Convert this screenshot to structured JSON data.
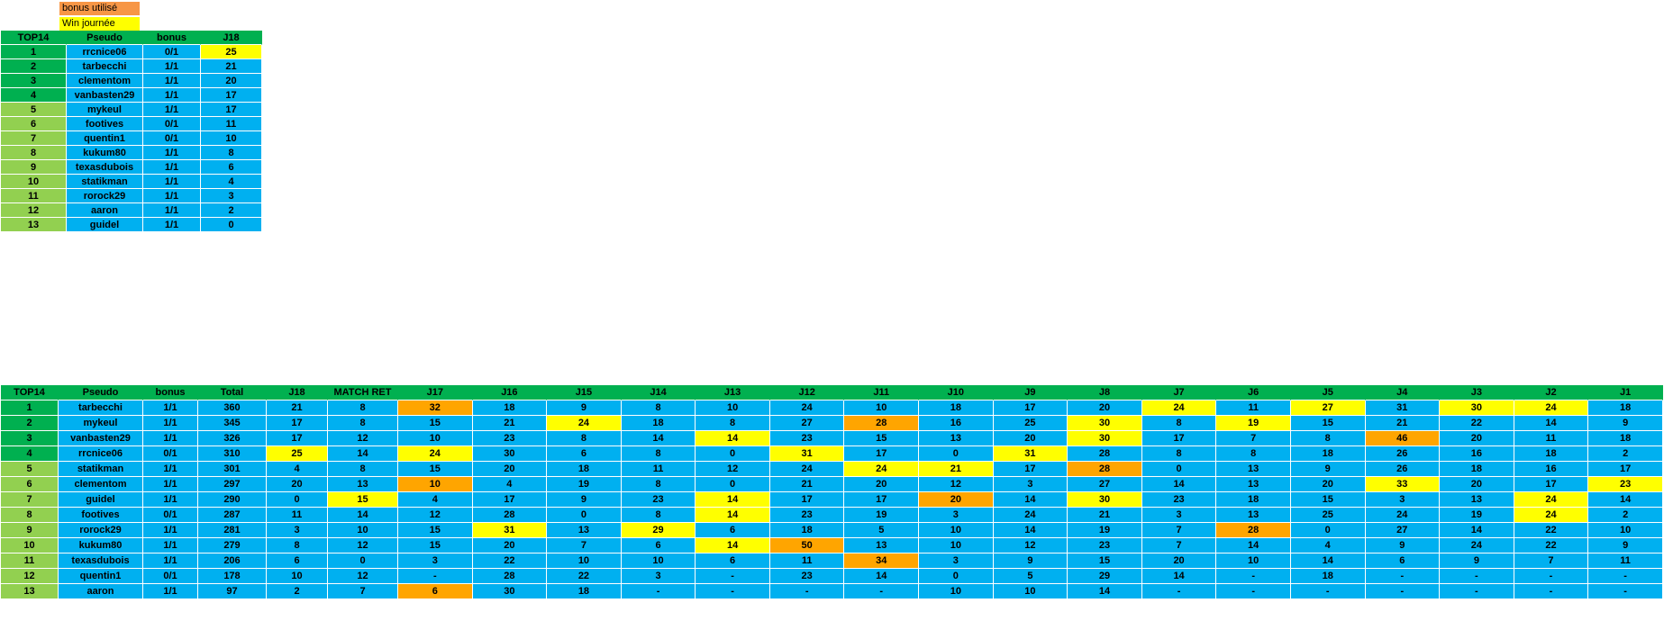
{
  "colors": {
    "header_green": "#00B050",
    "rank_light_green": "#92D050",
    "cell_blue": "#00B0F0",
    "win_yellow": "#FFFF00",
    "bonus_orange": "#FFA500",
    "legend_orange": "#F79646"
  },
  "legend": {
    "items": [
      {
        "label": "bonus utilisé",
        "color": "#F79646"
      },
      {
        "label": "Win journée",
        "color": "#FFFF00"
      }
    ]
  },
  "top_table": {
    "columns": [
      "TOP14",
      "Pseudo",
      "bonus",
      "J18"
    ],
    "rows": [
      {
        "rank": "1",
        "pseudo": "rrcnice06",
        "bonus": "0/1",
        "score": {
          "v": "25",
          "hl": "win"
        }
      },
      {
        "rank": "2",
        "pseudo": "tarbecchi",
        "bonus": "1/1",
        "score": {
          "v": "21"
        }
      },
      {
        "rank": "3",
        "pseudo": "clementom",
        "bonus": "1/1",
        "score": {
          "v": "20"
        }
      },
      {
        "rank": "4",
        "pseudo": "vanbasten29",
        "bonus": "1/1",
        "score": {
          "v": "17"
        }
      },
      {
        "rank": "5",
        "pseudo": "mykeul",
        "bonus": "1/1",
        "score": {
          "v": "17"
        }
      },
      {
        "rank": "6",
        "pseudo": "footives",
        "bonus": "0/1",
        "score": {
          "v": "11"
        }
      },
      {
        "rank": "7",
        "pseudo": "quentin1",
        "bonus": "0/1",
        "score": {
          "v": "10"
        }
      },
      {
        "rank": "8",
        "pseudo": "kukum80",
        "bonus": "1/1",
        "score": {
          "v": "8"
        }
      },
      {
        "rank": "9",
        "pseudo": "texasdubois",
        "bonus": "1/1",
        "score": {
          "v": "6"
        }
      },
      {
        "rank": "10",
        "pseudo": "statikman",
        "bonus": "1/1",
        "score": {
          "v": "4"
        }
      },
      {
        "rank": "11",
        "pseudo": "rorock29",
        "bonus": "1/1",
        "score": {
          "v": "3"
        }
      },
      {
        "rank": "12",
        "pseudo": "aaron",
        "bonus": "1/1",
        "score": {
          "v": "2"
        }
      },
      {
        "rank": "13",
        "pseudo": "guidel",
        "bonus": "1/1",
        "score": {
          "v": "0"
        }
      }
    ]
  },
  "bottom_table": {
    "columns": [
      "TOP14",
      "Pseudo",
      "bonus",
      "Total",
      "J18",
      "MATCH RET",
      "J17",
      "J16",
      "J15",
      "J14",
      "J13",
      "J12",
      "J11",
      "J10",
      "J9",
      "J8",
      "J7",
      "J6",
      "J5",
      "J4",
      "J3",
      "J2",
      "J1"
    ],
    "rows": [
      {
        "rank": "1",
        "pseudo": "tarbecchi",
        "bonus": "1/1",
        "total": "360",
        "scores": [
          {
            "v": "21"
          },
          {
            "v": "8"
          },
          {
            "v": "32",
            "hl": "bonus"
          },
          {
            "v": "18"
          },
          {
            "v": "9"
          },
          {
            "v": "8"
          },
          {
            "v": "10"
          },
          {
            "v": "24"
          },
          {
            "v": "10"
          },
          {
            "v": "18"
          },
          {
            "v": "17"
          },
          {
            "v": "20"
          },
          {
            "v": "24",
            "hl": "win"
          },
          {
            "v": "11"
          },
          {
            "v": "27",
            "hl": "win"
          },
          {
            "v": "31"
          },
          {
            "v": "30",
            "hl": "win"
          },
          {
            "v": "24",
            "hl": "win"
          },
          {
            "v": "18"
          }
        ]
      },
      {
        "rank": "2",
        "pseudo": "mykeul",
        "bonus": "1/1",
        "total": "345",
        "scores": [
          {
            "v": "17"
          },
          {
            "v": "8"
          },
          {
            "v": "15"
          },
          {
            "v": "21"
          },
          {
            "v": "24",
            "hl": "win"
          },
          {
            "v": "18"
          },
          {
            "v": "8"
          },
          {
            "v": "27"
          },
          {
            "v": "28",
            "hl": "bonus"
          },
          {
            "v": "16"
          },
          {
            "v": "25"
          },
          {
            "v": "30",
            "hl": "win"
          },
          {
            "v": "8"
          },
          {
            "v": "19",
            "hl": "win"
          },
          {
            "v": "15"
          },
          {
            "v": "21"
          },
          {
            "v": "22"
          },
          {
            "v": "14"
          },
          {
            "v": "9"
          }
        ]
      },
      {
        "rank": "3",
        "pseudo": "vanbasten29",
        "bonus": "1/1",
        "total": "326",
        "scores": [
          {
            "v": "17"
          },
          {
            "v": "12"
          },
          {
            "v": "10"
          },
          {
            "v": "23"
          },
          {
            "v": "8"
          },
          {
            "v": "14"
          },
          {
            "v": "14",
            "hl": "win"
          },
          {
            "v": "23"
          },
          {
            "v": "15"
          },
          {
            "v": "13"
          },
          {
            "v": "20"
          },
          {
            "v": "30",
            "hl": "win"
          },
          {
            "v": "17"
          },
          {
            "v": "7"
          },
          {
            "v": "8"
          },
          {
            "v": "46",
            "hl": "bonus"
          },
          {
            "v": "20"
          },
          {
            "v": "11"
          },
          {
            "v": "18"
          }
        ]
      },
      {
        "rank": "4",
        "pseudo": "rrcnice06",
        "bonus": "0/1",
        "total": "310",
        "scores": [
          {
            "v": "25",
            "hl": "win"
          },
          {
            "v": "14"
          },
          {
            "v": "24",
            "hl": "win"
          },
          {
            "v": "30"
          },
          {
            "v": "6"
          },
          {
            "v": "8"
          },
          {
            "v": "0"
          },
          {
            "v": "31",
            "hl": "win"
          },
          {
            "v": "17"
          },
          {
            "v": "0"
          },
          {
            "v": "31",
            "hl": "win"
          },
          {
            "v": "28"
          },
          {
            "v": "8"
          },
          {
            "v": "8"
          },
          {
            "v": "18"
          },
          {
            "v": "26"
          },
          {
            "v": "16"
          },
          {
            "v": "18"
          },
          {
            "v": "2"
          }
        ]
      },
      {
        "rank": "5",
        "pseudo": "statikman",
        "bonus": "1/1",
        "total": "301",
        "scores": [
          {
            "v": "4"
          },
          {
            "v": "8"
          },
          {
            "v": "15"
          },
          {
            "v": "20"
          },
          {
            "v": "18"
          },
          {
            "v": "11"
          },
          {
            "v": "12"
          },
          {
            "v": "24"
          },
          {
            "v": "24",
            "hl": "win"
          },
          {
            "v": "21",
            "hl": "win"
          },
          {
            "v": "17"
          },
          {
            "v": "28",
            "hl": "bonus"
          },
          {
            "v": "0"
          },
          {
            "v": "13"
          },
          {
            "v": "9"
          },
          {
            "v": "26"
          },
          {
            "v": "18"
          },
          {
            "v": "16"
          },
          {
            "v": "17"
          }
        ]
      },
      {
        "rank": "6",
        "pseudo": "clementom",
        "bonus": "1/1",
        "total": "297",
        "scores": [
          {
            "v": "20"
          },
          {
            "v": "13"
          },
          {
            "v": "10",
            "hl": "bonus"
          },
          {
            "v": "4"
          },
          {
            "v": "19"
          },
          {
            "v": "8"
          },
          {
            "v": "0"
          },
          {
            "v": "21"
          },
          {
            "v": "20"
          },
          {
            "v": "12"
          },
          {
            "v": "3"
          },
          {
            "v": "27"
          },
          {
            "v": "14"
          },
          {
            "v": "13"
          },
          {
            "v": "20"
          },
          {
            "v": "33",
            "hl": "win"
          },
          {
            "v": "20"
          },
          {
            "v": "17"
          },
          {
            "v": "23",
            "hl": "win"
          }
        ]
      },
      {
        "rank": "7",
        "pseudo": "guidel",
        "bonus": "1/1",
        "total": "290",
        "scores": [
          {
            "v": "0"
          },
          {
            "v": "15",
            "hl": "win"
          },
          {
            "v": "4"
          },
          {
            "v": "17"
          },
          {
            "v": "9"
          },
          {
            "v": "23"
          },
          {
            "v": "14",
            "hl": "win"
          },
          {
            "v": "17"
          },
          {
            "v": "17"
          },
          {
            "v": "20",
            "hl": "bonus"
          },
          {
            "v": "14"
          },
          {
            "v": "30",
            "hl": "win"
          },
          {
            "v": "23"
          },
          {
            "v": "18"
          },
          {
            "v": "15"
          },
          {
            "v": "3"
          },
          {
            "v": "13"
          },
          {
            "v": "24",
            "hl": "win"
          },
          {
            "v": "14"
          }
        ]
      },
      {
        "rank": "8",
        "pseudo": "footives",
        "bonus": "0/1",
        "total": "287",
        "scores": [
          {
            "v": "11"
          },
          {
            "v": "14"
          },
          {
            "v": "12"
          },
          {
            "v": "28"
          },
          {
            "v": "0"
          },
          {
            "v": "8"
          },
          {
            "v": "14",
            "hl": "win"
          },
          {
            "v": "23"
          },
          {
            "v": "19"
          },
          {
            "v": "3"
          },
          {
            "v": "24"
          },
          {
            "v": "21"
          },
          {
            "v": "3"
          },
          {
            "v": "13"
          },
          {
            "v": "25"
          },
          {
            "v": "24"
          },
          {
            "v": "19"
          },
          {
            "v": "24",
            "hl": "win"
          },
          {
            "v": "2"
          }
        ]
      },
      {
        "rank": "9",
        "pseudo": "rorock29",
        "bonus": "1/1",
        "total": "281",
        "scores": [
          {
            "v": "3"
          },
          {
            "v": "10"
          },
          {
            "v": "15"
          },
          {
            "v": "31",
            "hl": "win"
          },
          {
            "v": "13"
          },
          {
            "v": "29",
            "hl": "win"
          },
          {
            "v": "6"
          },
          {
            "v": "18"
          },
          {
            "v": "5"
          },
          {
            "v": "10"
          },
          {
            "v": "14"
          },
          {
            "v": "19"
          },
          {
            "v": "7"
          },
          {
            "v": "28",
            "hl": "bonus"
          },
          {
            "v": "0"
          },
          {
            "v": "27"
          },
          {
            "v": "14"
          },
          {
            "v": "22"
          },
          {
            "v": "10"
          }
        ]
      },
      {
        "rank": "10",
        "pseudo": "kukum80",
        "bonus": "1/1",
        "total": "279",
        "scores": [
          {
            "v": "8"
          },
          {
            "v": "12"
          },
          {
            "v": "15"
          },
          {
            "v": "20"
          },
          {
            "v": "7"
          },
          {
            "v": "6"
          },
          {
            "v": "14",
            "hl": "win"
          },
          {
            "v": "50",
            "hl": "bonus"
          },
          {
            "v": "13"
          },
          {
            "v": "10"
          },
          {
            "v": "12"
          },
          {
            "v": "23"
          },
          {
            "v": "7"
          },
          {
            "v": "14"
          },
          {
            "v": "4"
          },
          {
            "v": "9"
          },
          {
            "v": "24"
          },
          {
            "v": "22"
          },
          {
            "v": "9"
          }
        ]
      },
      {
        "rank": "11",
        "pseudo": "texasdubois",
        "bonus": "1/1",
        "total": "206",
        "scores": [
          {
            "v": "6"
          },
          {
            "v": "0"
          },
          {
            "v": "3"
          },
          {
            "v": "22"
          },
          {
            "v": "10"
          },
          {
            "v": "10"
          },
          {
            "v": "6"
          },
          {
            "v": "11"
          },
          {
            "v": "34",
            "hl": "bonus"
          },
          {
            "v": "3"
          },
          {
            "v": "9"
          },
          {
            "v": "15"
          },
          {
            "v": "20"
          },
          {
            "v": "10"
          },
          {
            "v": "14"
          },
          {
            "v": "6"
          },
          {
            "v": "9"
          },
          {
            "v": "7"
          },
          {
            "v": "11"
          }
        ]
      },
      {
        "rank": "12",
        "pseudo": "quentin1",
        "bonus": "0/1",
        "total": "178",
        "scores": [
          {
            "v": "10"
          },
          {
            "v": "12"
          },
          {
            "v": "-"
          },
          {
            "v": "28"
          },
          {
            "v": "22"
          },
          {
            "v": "3"
          },
          {
            "v": "-"
          },
          {
            "v": "23"
          },
          {
            "v": "14"
          },
          {
            "v": "0"
          },
          {
            "v": "5"
          },
          {
            "v": "29"
          },
          {
            "v": "14"
          },
          {
            "v": "-"
          },
          {
            "v": "18"
          },
          {
            "v": "-"
          },
          {
            "v": "-"
          },
          {
            "v": "-"
          },
          {
            "v": "-"
          }
        ]
      },
      {
        "rank": "13",
        "pseudo": "aaron",
        "bonus": "1/1",
        "total": "97",
        "scores": [
          {
            "v": "2"
          },
          {
            "v": "7"
          },
          {
            "v": "6",
            "hl": "bonus"
          },
          {
            "v": "30"
          },
          {
            "v": "18"
          },
          {
            "v": "-"
          },
          {
            "v": "-"
          },
          {
            "v": "-"
          },
          {
            "v": "-"
          },
          {
            "v": "10"
          },
          {
            "v": "10"
          },
          {
            "v": "14"
          },
          {
            "v": "-"
          },
          {
            "v": "-"
          },
          {
            "v": "-"
          },
          {
            "v": "-"
          },
          {
            "v": "-"
          },
          {
            "v": "-"
          },
          {
            "v": "-"
          }
        ]
      }
    ]
  }
}
